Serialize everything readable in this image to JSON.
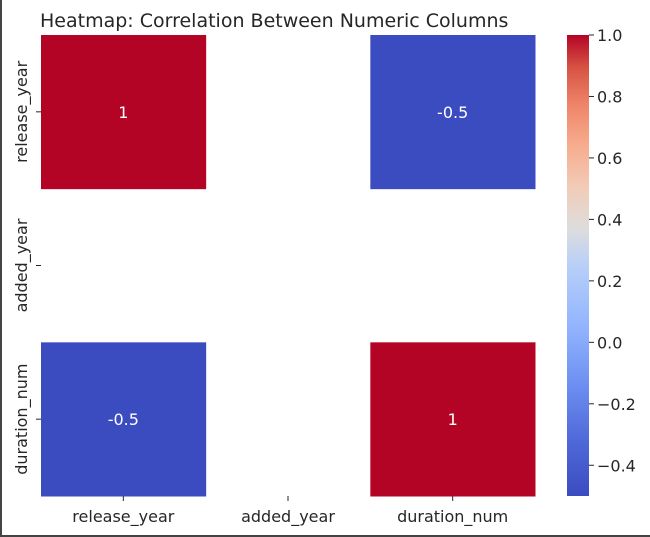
{
  "chart_data": {
    "type": "heatmap",
    "title": "Heatmap: Correlation Between Numeric Columns",
    "rows": [
      "release_year",
      "added_year",
      "duration_num"
    ],
    "columns": [
      "release_year",
      "added_year",
      "duration_num"
    ],
    "values": [
      [
        1,
        null,
        -0.5
      ],
      [
        null,
        null,
        null
      ],
      [
        -0.5,
        null,
        1
      ]
    ],
    "annotations": [
      [
        "1",
        "",
        "-0.5"
      ],
      [
        "",
        "",
        ""
      ],
      [
        "-0.5",
        "",
        "1"
      ]
    ],
    "colormap": "coolwarm",
    "colorbar": {
      "range": [
        -0.5,
        1.0
      ],
      "ticks": [
        1.0,
        0.8,
        0.6,
        0.4,
        0.2,
        0.0,
        -0.2,
        -0.4
      ],
      "tick_labels": [
        "1.0",
        "0.8",
        "0.6",
        "0.4",
        "0.2",
        "0.0",
        "−0.2",
        "−0.4"
      ]
    },
    "colors": {
      "high": "#b40426",
      "low": "#3b4cc0",
      "mid": "#dddddd"
    }
  }
}
